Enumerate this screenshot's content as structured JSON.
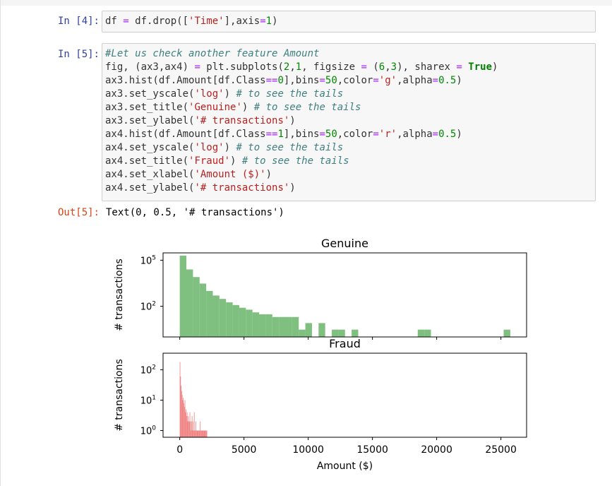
{
  "cells": [
    {
      "prompt": "In [4]:",
      "code": [
        [
          [
            "n",
            "df "
          ],
          [
            "o",
            "="
          ],
          [
            "n",
            " df.drop(["
          ],
          [
            "s",
            "'Time'"
          ],
          [
            "n",
            "],axis"
          ],
          [
            "o",
            "="
          ],
          [
            "m",
            "1"
          ],
          [
            "n",
            ")"
          ]
        ]
      ]
    },
    {
      "prompt": "In [5]:",
      "code": [
        [
          [
            "c",
            "#Let us check another feature Amount"
          ]
        ],
        [
          [
            "n",
            "fig, (ax3,ax4) "
          ],
          [
            "o",
            "="
          ],
          [
            "n",
            " plt.subplots("
          ],
          [
            "m",
            "2"
          ],
          [
            "n",
            ","
          ],
          [
            "m",
            "1"
          ],
          [
            "n",
            ", figsize "
          ],
          [
            "o",
            "="
          ],
          [
            "n",
            " ("
          ],
          [
            "m",
            "6"
          ],
          [
            "n",
            ","
          ],
          [
            "m",
            "3"
          ],
          [
            "n",
            "), sharex "
          ],
          [
            "o",
            "="
          ],
          [
            "n",
            " "
          ],
          [
            "k",
            "True"
          ],
          [
            "n",
            ")"
          ]
        ],
        [
          [
            "n",
            "ax3.hist(df.Amount[df.Class"
          ],
          [
            "o",
            "=="
          ],
          [
            "m",
            "0"
          ],
          [
            "n",
            "],bins"
          ],
          [
            "o",
            "="
          ],
          [
            "m",
            "50"
          ],
          [
            "n",
            ",color"
          ],
          [
            "o",
            "="
          ],
          [
            "s",
            "'g'"
          ],
          [
            "n",
            ",alpha"
          ],
          [
            "o",
            "="
          ],
          [
            "m",
            "0.5"
          ],
          [
            "n",
            ")"
          ]
        ],
        [
          [
            "n",
            "ax3.set_yscale("
          ],
          [
            "s",
            "'log'"
          ],
          [
            "n",
            ") "
          ],
          [
            "c",
            "# to see the tails"
          ]
        ],
        [
          [
            "n",
            "ax3.set_title("
          ],
          [
            "s",
            "'Genuine'"
          ],
          [
            "n",
            ") "
          ],
          [
            "c",
            "# to see the tails"
          ]
        ],
        [
          [
            "n",
            "ax3.set_ylabel("
          ],
          [
            "s",
            "'# transactions'"
          ],
          [
            "n",
            ")"
          ]
        ],
        [
          [
            "n",
            "ax4.hist(df.Amount[df.Class"
          ],
          [
            "o",
            "=="
          ],
          [
            "m",
            "1"
          ],
          [
            "n",
            "],bins"
          ],
          [
            "o",
            "="
          ],
          [
            "m",
            "50"
          ],
          [
            "n",
            ",color"
          ],
          [
            "o",
            "="
          ],
          [
            "s",
            "'r'"
          ],
          [
            "n",
            ",alpha"
          ],
          [
            "o",
            "="
          ],
          [
            "m",
            "0.5"
          ],
          [
            "n",
            ")"
          ]
        ],
        [
          [
            "n",
            "ax4.set_yscale("
          ],
          [
            "s",
            "'log'"
          ],
          [
            "n",
            ") "
          ],
          [
            "c",
            "# to see the tails"
          ]
        ],
        [
          [
            "n",
            "ax4.set_title("
          ],
          [
            "s",
            "'Fraud'"
          ],
          [
            "n",
            ") "
          ],
          [
            "c",
            "# to see the tails"
          ]
        ],
        [
          [
            "n",
            "ax4.set_xlabel("
          ],
          [
            "s",
            "'Amount ($)'"
          ],
          [
            "n",
            ")"
          ]
        ],
        [
          [
            "n",
            "ax4.set_ylabel("
          ],
          [
            "s",
            "'# transactions'"
          ],
          [
            "n",
            ")"
          ]
        ]
      ],
      "out_prompt": "Out[5]:",
      "out_text": "Text(0, 0.5, '# transactions')"
    }
  ],
  "chart_data": [
    {
      "type": "bar",
      "title": "Genuine",
      "xlabel": "",
      "ylabel": "# transactions",
      "yscale": "log",
      "ytick_labels": [
        "10^5",
        "10^2"
      ],
      "ylim": [
        1,
        300000
      ],
      "xlim": [
        -1300,
        27000
      ],
      "bin_width": 514.6,
      "color": "#7fbf7f",
      "bins_x": [
        0,
        514.6,
        1029.2,
        1543.8,
        2058.4,
        2573,
        3087.6,
        3602.2,
        4116.8,
        4631.4,
        5146,
        5660.6,
        6175.2,
        6689.8,
        7204.4,
        7719,
        8233.6,
        8748.2,
        9262.8,
        9777.4,
        10806.6,
        11835.8,
        12350.4,
        13379.6,
        18525.6,
        19040.2,
        25216
      ],
      "bins_count": [
        200000,
        25000,
        8000,
        3000,
        1000,
        500,
        300,
        180,
        120,
        80,
        60,
        40,
        30,
        30,
        20,
        20,
        20,
        20,
        3,
        8,
        8,
        3,
        3,
        3,
        3,
        3,
        3
      ]
    },
    {
      "type": "bar",
      "title": "Fraud",
      "xlabel": "Amount ($)",
      "ylabel": "# transactions",
      "yscale": "log",
      "ytick_labels": [
        "10^2",
        "10^1",
        "10^0"
      ],
      "ylim": [
        0.6,
        350
      ],
      "xlim": [
        -1300,
        27000
      ],
      "bin_width": 42.6,
      "color": "#f08080",
      "xticks": [
        0,
        5000,
        10000,
        15000,
        20000,
        25000
      ],
      "xtick_labels": [
        "0",
        "5000",
        "10000",
        "15000",
        "20000",
        "25000"
      ],
      "bins_x": [
        0,
        42.6,
        85.2,
        127.8,
        170.4,
        213,
        255.6,
        298.2,
        340.8,
        383.4,
        426,
        468.6,
        511.2,
        553.8,
        596.4,
        639,
        681.6,
        724.2,
        766.8,
        809.4,
        852,
        894.6,
        937.2,
        979.8,
        1022.4,
        1065,
        1107.6,
        1150.2,
        1192.8,
        1235.4,
        1278,
        1320.6,
        1363.2,
        1405.8,
        1448.4,
        1491,
        1533.6,
        1576.2,
        1618.8,
        1661.4,
        1704,
        1746.6,
        1789.2,
        1831.8,
        1874.4,
        1917,
        1959.6,
        2002.2,
        2044.8,
        2087.4
      ],
      "bins_count": [
        180,
        60,
        30,
        20,
        15,
        10,
        12,
        8,
        6,
        10,
        4,
        5,
        3,
        4,
        2,
        3,
        2,
        2,
        4,
        2,
        1,
        2,
        3,
        1,
        2,
        1,
        4,
        1,
        1,
        2,
        1,
        1,
        1,
        1,
        1,
        1,
        1,
        2,
        1,
        1,
        1,
        1,
        1,
        1,
        1,
        1,
        1,
        1,
        1,
        1
      ]
    }
  ]
}
